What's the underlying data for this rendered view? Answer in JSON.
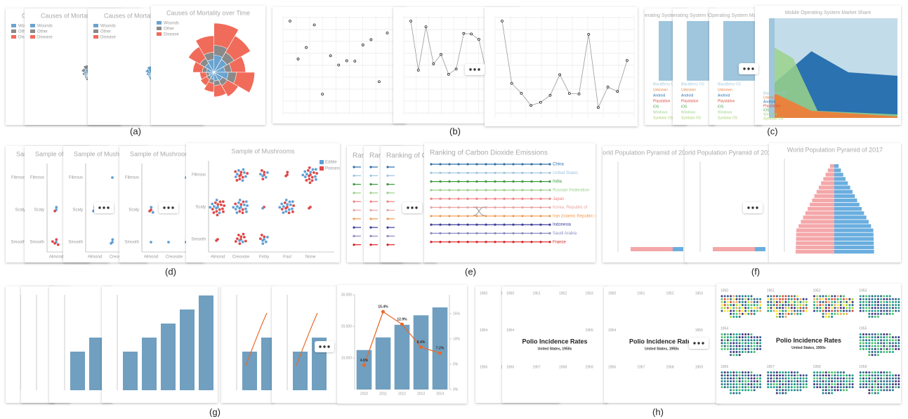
{
  "panels": [
    {
      "label": "(a)",
      "title": "Causes of Mortality over Time",
      "legend": [
        "Wounds",
        "Other",
        "Disease"
      ]
    },
    {
      "label": "(b)"
    },
    {
      "label": "(c)",
      "title": "Mobile Operating System Market Share",
      "legend": [
        "BlackBerry OS",
        "Unknown",
        "Android",
        "Playstation",
        "iOS",
        "Windows",
        "Symbian OS"
      ]
    },
    {
      "label": "(d)",
      "title": "Sample of Mushrooms",
      "legend": [
        "Edible",
        "Poisonous"
      ],
      "x": [
        "Almond",
        "Creosote",
        "Fishy",
        "Foul",
        "None"
      ],
      "y": [
        "Fibrous",
        "Scaly",
        "Smooth"
      ]
    },
    {
      "label": "(e)",
      "title": "Ranking of Carbon Dioxide Emissions",
      "series": [
        "China",
        "United States",
        "India",
        "Russian Federation",
        "Japan",
        "Korea, Republic of",
        "Iran (Islamic Republic of)",
        "Indonesia",
        "Saudi Arabia",
        "France"
      ]
    },
    {
      "label": "(f)",
      "title": "World Population Pyramid of 2017"
    },
    {
      "label": "(g)",
      "categories": [
        "2010",
        "2011",
        "2012",
        "2013",
        "2014"
      ],
      "bars": [
        12500,
        16500,
        20500,
        23500,
        26000
      ],
      "line": [
        4.8,
        15.4,
        12.9,
        8.4,
        7.2
      ],
      "line_labels": [
        "4.8%",
        "15.4%",
        "12.9%",
        "8.4%",
        "7.2%"
      ],
      "ylim": [
        0,
        30000
      ],
      "yticks": [
        {
          "value": 10000,
          "label": "10,000"
        },
        {
          "value": 20000,
          "label": "20,000"
        },
        {
          "value": 30000,
          "label": "30,000"
        }
      ],
      "y2lim": [
        0,
        18.75
      ],
      "y2ticks": [
        {
          "value": 0,
          "label": "0%"
        },
        {
          "value": 5,
          "label": "5%"
        },
        {
          "value": 10,
          "label": "10%"
        },
        {
          "value": 15,
          "label": "15%"
        }
      ]
    },
    {
      "label": "(h)",
      "title": "Polio Incidence Rates",
      "subtitle": "United States, 1950s",
      "years": [
        "1950",
        "1951",
        "1952",
        "1953",
        "1954",
        "1955",
        "1956",
        "1957",
        "1958",
        "1959"
      ]
    }
  ]
}
